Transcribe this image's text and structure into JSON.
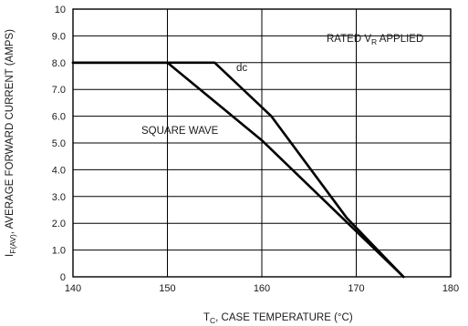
{
  "chart_data": {
    "type": "line",
    "title": "",
    "xlabel": {
      "main": "T",
      "sub": "C",
      "rest": ", CASE TEMPERATURE (°C)"
    },
    "ylabel": {
      "main": "I",
      "sub": "F(AV)",
      "rest": ", AVERAGE FORWARD CURRENT (AMPS)"
    },
    "xlim": [
      140,
      180
    ],
    "ylim": [
      0,
      10
    ],
    "x_ticks": [
      "140",
      "150",
      "160",
      "170",
      "180"
    ],
    "y_ticks": [
      "0",
      "1.0",
      "2.0",
      "3.0",
      "4.0",
      "5.0",
      "6.0",
      "7.0",
      "8.0",
      "9.0",
      "10"
    ],
    "grid": true,
    "series": [
      {
        "name": "dc",
        "points": [
          [
            140,
            8.0
          ],
          [
            155,
            8.0
          ],
          [
            161,
            6.0
          ],
          [
            169,
            2.2
          ],
          [
            175,
            0
          ]
        ]
      },
      {
        "name": "SQUARE WAVE",
        "points": [
          [
            140,
            8.0
          ],
          [
            150,
            8.0
          ],
          [
            160,
            5.1
          ],
          [
            175,
            0
          ]
        ]
      }
    ],
    "annotations": {
      "rated": {
        "main": "RATED V",
        "sub": "R",
        "rest": " APPLIED"
      }
    }
  }
}
